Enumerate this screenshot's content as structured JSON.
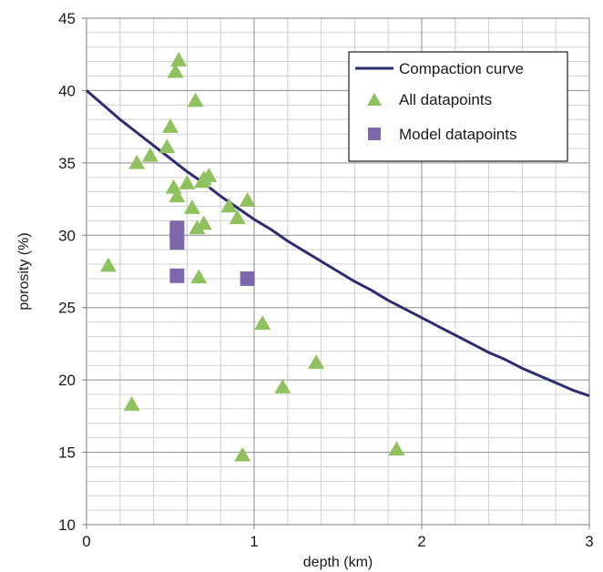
{
  "chart_data": {
    "type": "scatter",
    "xlabel": "depth (km)",
    "ylabel": "porosity (%)",
    "xlim": [
      0,
      3
    ],
    "ylim": [
      10,
      45
    ],
    "xticks": [
      "0",
      "1",
      "2",
      "3"
    ],
    "yticks": [
      "10",
      "15",
      "20",
      "25",
      "30",
      "35",
      "40",
      "45"
    ],
    "grid": true,
    "legend_position": "top-right",
    "series": [
      {
        "name": "Compaction curve",
        "kind": "line",
        "color": "#2b2d6e",
        "x": [
          0,
          0.1,
          0.2,
          0.3,
          0.4,
          0.5,
          0.6,
          0.7,
          0.8,
          0.9,
          1.0,
          1.1,
          1.2,
          1.3,
          1.4,
          1.5,
          1.6,
          1.7,
          1.8,
          1.9,
          2.0,
          2.1,
          2.2,
          2.3,
          2.4,
          2.5,
          2.6,
          2.7,
          2.8,
          2.9,
          3.0
        ],
        "y": [
          40.0,
          39.0,
          38.0,
          37.1,
          36.2,
          35.3,
          34.4,
          33.6,
          32.7,
          31.9,
          31.1,
          30.4,
          29.6,
          28.9,
          28.2,
          27.5,
          26.8,
          26.2,
          25.5,
          24.9,
          24.3,
          23.7,
          23.1,
          22.5,
          21.9,
          21.4,
          20.8,
          20.3,
          19.8,
          19.3,
          18.9
        ]
      },
      {
        "name": "All datapoints",
        "kind": "scatter",
        "marker": "triangle",
        "color": "#8fc25f",
        "points": [
          [
            0.55,
            42.1
          ],
          [
            0.53,
            41.3
          ],
          [
            0.65,
            39.3
          ],
          [
            0.5,
            37.5
          ],
          [
            0.48,
            36.1
          ],
          [
            0.38,
            35.5
          ],
          [
            0.3,
            35.0
          ],
          [
            0.6,
            33.6
          ],
          [
            0.69,
            33.7
          ],
          [
            0.73,
            34.1
          ],
          [
            0.7,
            33.9
          ],
          [
            0.52,
            33.3
          ],
          [
            0.54,
            32.7
          ],
          [
            0.85,
            32.0
          ],
          [
            0.96,
            32.4
          ],
          [
            0.63,
            31.9
          ],
          [
            0.9,
            31.2
          ],
          [
            0.7,
            30.8
          ],
          [
            0.66,
            30.5
          ],
          [
            0.13,
            27.9
          ],
          [
            0.67,
            27.1
          ],
          [
            1.05,
            23.9
          ],
          [
            1.37,
            21.2
          ],
          [
            1.17,
            19.5
          ],
          [
            0.27,
            18.3
          ],
          [
            1.85,
            15.2
          ],
          [
            0.93,
            14.8
          ]
        ]
      },
      {
        "name": "Model datapoints",
        "kind": "scatter",
        "marker": "square",
        "color": "#7d68ac",
        "points": [
          [
            0.54,
            30.5
          ],
          [
            0.54,
            30.0
          ],
          [
            0.54,
            29.5
          ],
          [
            0.54,
            27.2
          ],
          [
            0.96,
            27.0
          ]
        ]
      }
    ]
  }
}
